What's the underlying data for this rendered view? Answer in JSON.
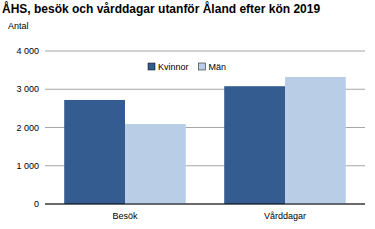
{
  "chart_data": {
    "type": "bar",
    "title": "ÅHS, besök och vårddagar utanför Åland efter kön 2019",
    "y_label": "Antal",
    "categories": [
      "Besök",
      "Vårddagar"
    ],
    "series": [
      {
        "name": "Kvinnor",
        "color": "#355c91",
        "values": [
          2720,
          3080
        ]
      },
      {
        "name": "Män",
        "color": "#b9cde6",
        "values": [
          2090,
          3320
        ]
      }
    ],
    "ylim": [
      0,
      4000
    ],
    "yticks": [
      0,
      {
        "value": 1000,
        "label": "1 000"
      },
      {
        "value": 2000,
        "label": "2 000"
      },
      {
        "value": 3000,
        "label": "3 000"
      },
      {
        "value": 4000,
        "label": "4 000"
      }
    ],
    "grid": true,
    "legend": "top"
  }
}
